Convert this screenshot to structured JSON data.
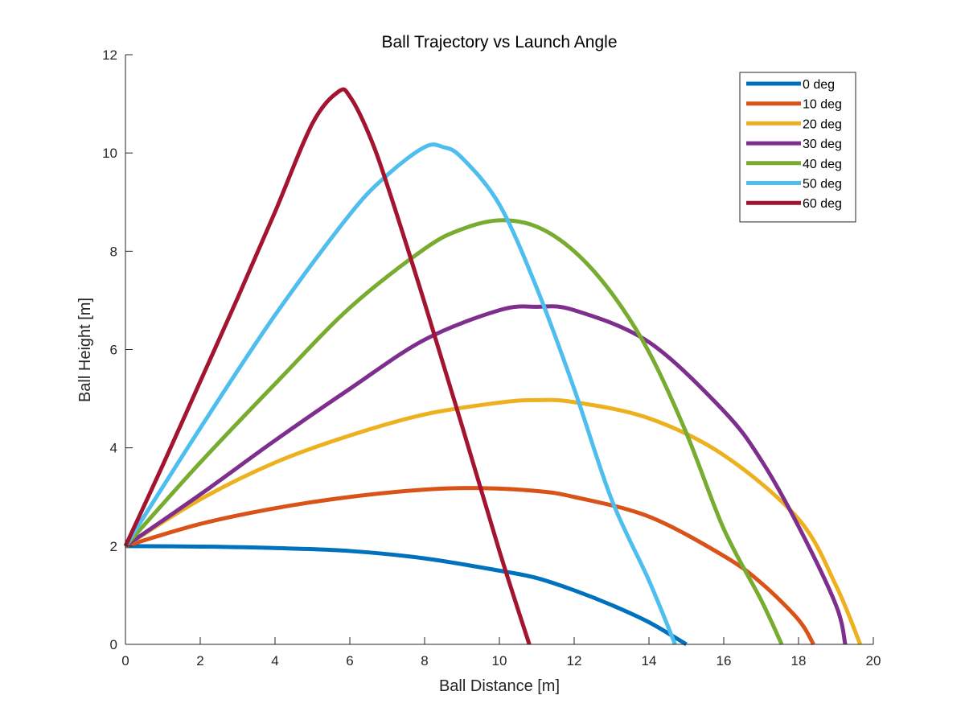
{
  "chart_data": {
    "type": "line",
    "title": "Ball Trajectory vs Launch Angle",
    "xlabel": "Ball Distance [m]",
    "ylabel": "Ball Height [m]",
    "xlim": [
      0,
      20
    ],
    "ylim": [
      0,
      12
    ],
    "xticks": [
      0,
      2,
      4,
      6,
      8,
      10,
      12,
      14,
      16,
      18,
      20
    ],
    "yticks": [
      0,
      2,
      4,
      6,
      8,
      10,
      12
    ],
    "xtick_labels": [
      "0",
      "2",
      "4",
      "6",
      "8",
      "10",
      "12",
      "14",
      "16",
      "18",
      "20"
    ],
    "ytick_labels": [
      "0",
      "2",
      "4",
      "6",
      "8",
      "10",
      "12"
    ],
    "grid": false,
    "legend_position": "top-right",
    "series": [
      {
        "name": "0 deg",
        "color": "#0072BD",
        "points": [
          [
            0,
            2.0
          ],
          [
            2,
            1.99
          ],
          [
            4,
            1.96
          ],
          [
            6,
            1.9
          ],
          [
            8,
            1.75
          ],
          [
            10,
            1.5
          ],
          [
            11,
            1.35
          ],
          [
            12,
            1.1
          ],
          [
            13,
            0.8
          ],
          [
            14,
            0.45
          ],
          [
            15,
            0.0
          ]
        ]
      },
      {
        "name": "10 deg",
        "color": "#D95319",
        "points": [
          [
            0,
            2.0
          ],
          [
            2,
            2.45
          ],
          [
            4,
            2.77
          ],
          [
            6,
            3.0
          ],
          [
            8,
            3.15
          ],
          [
            9.5,
            3.18
          ],
          [
            11,
            3.12
          ],
          [
            12,
            3.0
          ],
          [
            14,
            2.6
          ],
          [
            16,
            1.8
          ],
          [
            17,
            1.25
          ],
          [
            18,
            0.5
          ],
          [
            18.4,
            0.0
          ]
        ]
      },
      {
        "name": "20 deg",
        "color": "#EDB120",
        "points": [
          [
            0,
            2.0
          ],
          [
            2,
            2.95
          ],
          [
            4,
            3.7
          ],
          [
            6,
            4.25
          ],
          [
            8,
            4.68
          ],
          [
            10,
            4.92
          ],
          [
            11,
            4.97
          ],
          [
            12,
            4.93
          ],
          [
            14,
            4.6
          ],
          [
            16,
            3.85
          ],
          [
            18,
            2.55
          ],
          [
            19,
            1.2
          ],
          [
            19.65,
            0.0
          ]
        ]
      },
      {
        "name": "30 deg",
        "color": "#7E2F8E",
        "points": [
          [
            0,
            2.0
          ],
          [
            2,
            3.05
          ],
          [
            4,
            4.15
          ],
          [
            6,
            5.2
          ],
          [
            8,
            6.2
          ],
          [
            10,
            6.8
          ],
          [
            11,
            6.87
          ],
          [
            12,
            6.8
          ],
          [
            14,
            6.15
          ],
          [
            16,
            4.75
          ],
          [
            17,
            3.75
          ],
          [
            18,
            2.4
          ],
          [
            19,
            0.8
          ],
          [
            19.25,
            0.0
          ]
        ]
      },
      {
        "name": "40 deg",
        "color": "#77AC30",
        "points": [
          [
            0,
            2.0
          ],
          [
            2,
            3.7
          ],
          [
            4,
            5.3
          ],
          [
            6,
            6.85
          ],
          [
            8,
            8.05
          ],
          [
            9,
            8.45
          ],
          [
            10,
            8.63
          ],
          [
            11,
            8.5
          ],
          [
            12,
            8.0
          ],
          [
            13,
            7.15
          ],
          [
            14,
            5.95
          ],
          [
            15,
            4.3
          ],
          [
            16,
            2.35
          ],
          [
            17,
            0.9
          ],
          [
            17.55,
            0.0
          ]
        ]
      },
      {
        "name": "50 deg",
        "color": "#4DBEEE",
        "points": [
          [
            0,
            2.0
          ],
          [
            2,
            4.4
          ],
          [
            4,
            6.7
          ],
          [
            6,
            8.75
          ],
          [
            7,
            9.55
          ],
          [
            8,
            10.12
          ],
          [
            8.5,
            10.12
          ],
          [
            9,
            9.9
          ],
          [
            10,
            8.95
          ],
          [
            11,
            7.25
          ],
          [
            12,
            5.2
          ],
          [
            13,
            2.95
          ],
          [
            14,
            1.3
          ],
          [
            14.7,
            0.0
          ]
        ]
      },
      {
        "name": "60 deg",
        "color": "#A2142F",
        "points": [
          [
            0,
            2.0
          ],
          [
            1,
            3.65
          ],
          [
            2,
            5.35
          ],
          [
            3,
            7.05
          ],
          [
            4,
            8.8
          ],
          [
            5,
            10.6
          ],
          [
            5.7,
            11.25
          ],
          [
            6,
            11.15
          ],
          [
            6.5,
            10.4
          ],
          [
            7,
            9.35
          ],
          [
            8,
            6.95
          ],
          [
            9,
            4.45
          ],
          [
            10,
            1.9
          ],
          [
            10.8,
            0.0
          ]
        ]
      }
    ]
  }
}
